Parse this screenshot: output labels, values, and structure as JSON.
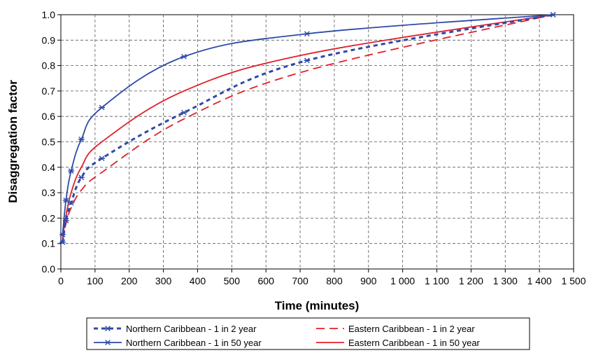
{
  "chart_data": {
    "type": "line",
    "xlabel": "Time (minutes)",
    "ylabel": "Disaggregation factor",
    "xlim": [
      0,
      1500
    ],
    "ylim": [
      0,
      1.0
    ],
    "x_ticks": [
      0,
      100,
      200,
      300,
      400,
      500,
      600,
      700,
      800,
      900,
      1000,
      1100,
      1200,
      1300,
      1400,
      1500
    ],
    "x_tick_labels": [
      "0",
      "100",
      "200",
      "300",
      "400",
      "500",
      "600",
      "700",
      "800",
      "900",
      "1 000",
      "1 100",
      "1 200",
      "1 300",
      "1 400",
      "1 500"
    ],
    "y_ticks": [
      0.0,
      0.1,
      0.2,
      0.3,
      0.4,
      0.5,
      0.6,
      0.7,
      0.8,
      0.9,
      1.0
    ],
    "y_tick_labels": [
      "0.0",
      "0.1",
      "0.2",
      "0.3",
      "0.4",
      "0.5",
      "0.6",
      "0.7",
      "0.8",
      "0.9",
      "1.0"
    ],
    "grid": true,
    "legend_position": "bottom",
    "series": [
      {
        "name": "Northern Caribbean - 1 in 2 year",
        "color": "#2e4aa8",
        "style": "dashed-bold",
        "marker": "star",
        "x": [
          5,
          15,
          30,
          60,
          120,
          360,
          720,
          1440
        ],
        "y": [
          0.105,
          0.19,
          0.26,
          0.36,
          0.435,
          0.615,
          0.82,
          1.0
        ]
      },
      {
        "name": "Northern Caribbean - 1 in 50 year",
        "color": "#2e4aa8",
        "style": "solid",
        "marker": "star",
        "x": [
          5,
          15,
          30,
          60,
          120,
          360,
          720,
          1440
        ],
        "y": [
          0.135,
          0.27,
          0.385,
          0.51,
          0.635,
          0.835,
          0.925,
          1.0
        ]
      },
      {
        "name": "Eastern Caribbean - 1 in 2 year",
        "color": "#e0202a",
        "style": "dashed",
        "marker": "none",
        "x": [
          5,
          15,
          30,
          60,
          120,
          360,
          720,
          1440
        ],
        "y": [
          0.11,
          0.18,
          0.24,
          0.31,
          0.38,
          0.59,
          0.78,
          1.0
        ]
      },
      {
        "name": "Eastern Caribbean - 1 in 50 year",
        "color": "#e0202a",
        "style": "solid",
        "marker": "none",
        "x": [
          5,
          15,
          30,
          60,
          120,
          360,
          720,
          1440
        ],
        "y": [
          0.12,
          0.21,
          0.3,
          0.4,
          0.5,
          0.7,
          0.845,
          1.0
        ]
      }
    ]
  }
}
